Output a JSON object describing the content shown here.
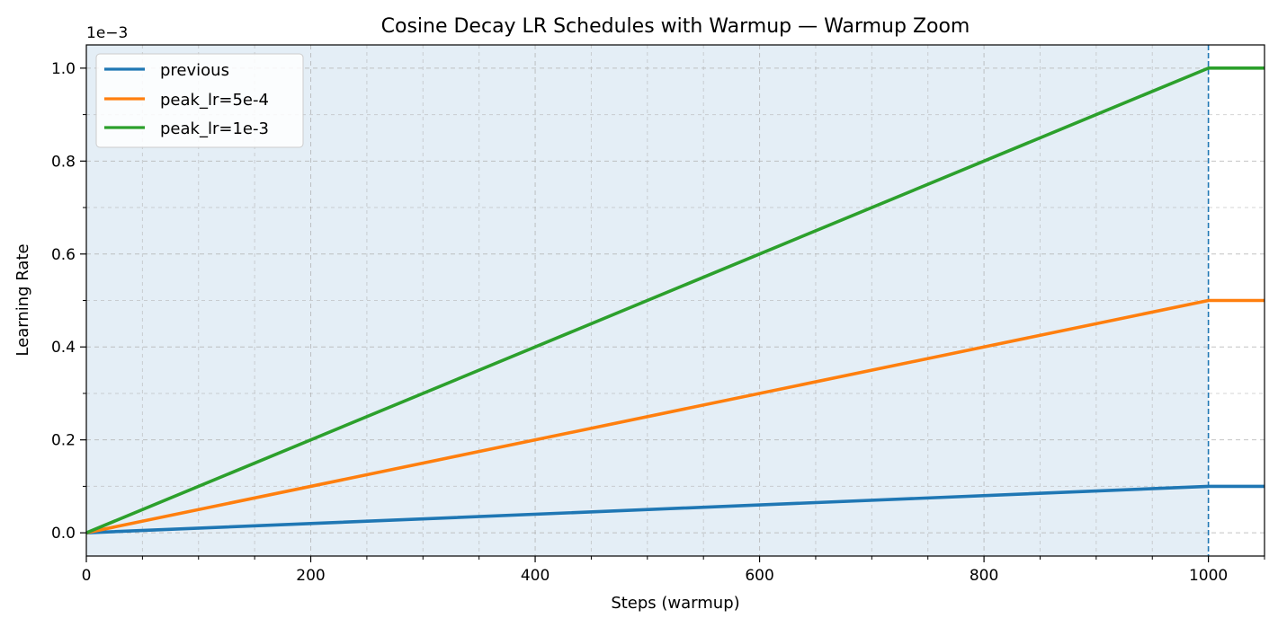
{
  "chart_data": {
    "type": "line",
    "title": "Cosine Decay LR Schedules with Warmup — Warmup Zoom",
    "xlabel": "Steps (warmup)",
    "ylabel": "Learning Rate",
    "y_offset_label": "1e−3",
    "xlim": [
      0,
      1050
    ],
    "ylim": [
      -5e-05,
      0.00105
    ],
    "x_ticks": [
      0,
      200,
      400,
      600,
      800,
      1000
    ],
    "x_tick_labels": [
      "0",
      "200",
      "400",
      "600",
      "800",
      "1000"
    ],
    "y_ticks": [
      0.0,
      0.0002,
      0.0004,
      0.0006,
      0.0008,
      0.001
    ],
    "y_tick_labels": [
      "0.0",
      "0.2",
      "0.4",
      "0.6",
      "0.8",
      "1.0"
    ],
    "grid": true,
    "legend_position": "upper-left",
    "warmup_end_step": 1000,
    "warmup_shaded_region": [
      0,
      1000
    ],
    "series": [
      {
        "name": "previous",
        "color": "#1f77b4",
        "x": [
          0,
          1000,
          1050
        ],
        "y": [
          0.0,
          0.0001,
          0.0001
        ]
      },
      {
        "name": "peak_lr=5e-4",
        "color": "#ff7f0e",
        "x": [
          0,
          1000,
          1050
        ],
        "y": [
          0.0,
          0.0005,
          0.0005
        ]
      },
      {
        "name": "peak_lr=1e-3",
        "color": "#2ca02c",
        "x": [
          0,
          1000,
          1050
        ],
        "y": [
          0.0,
          0.001,
          0.001
        ]
      }
    ]
  }
}
